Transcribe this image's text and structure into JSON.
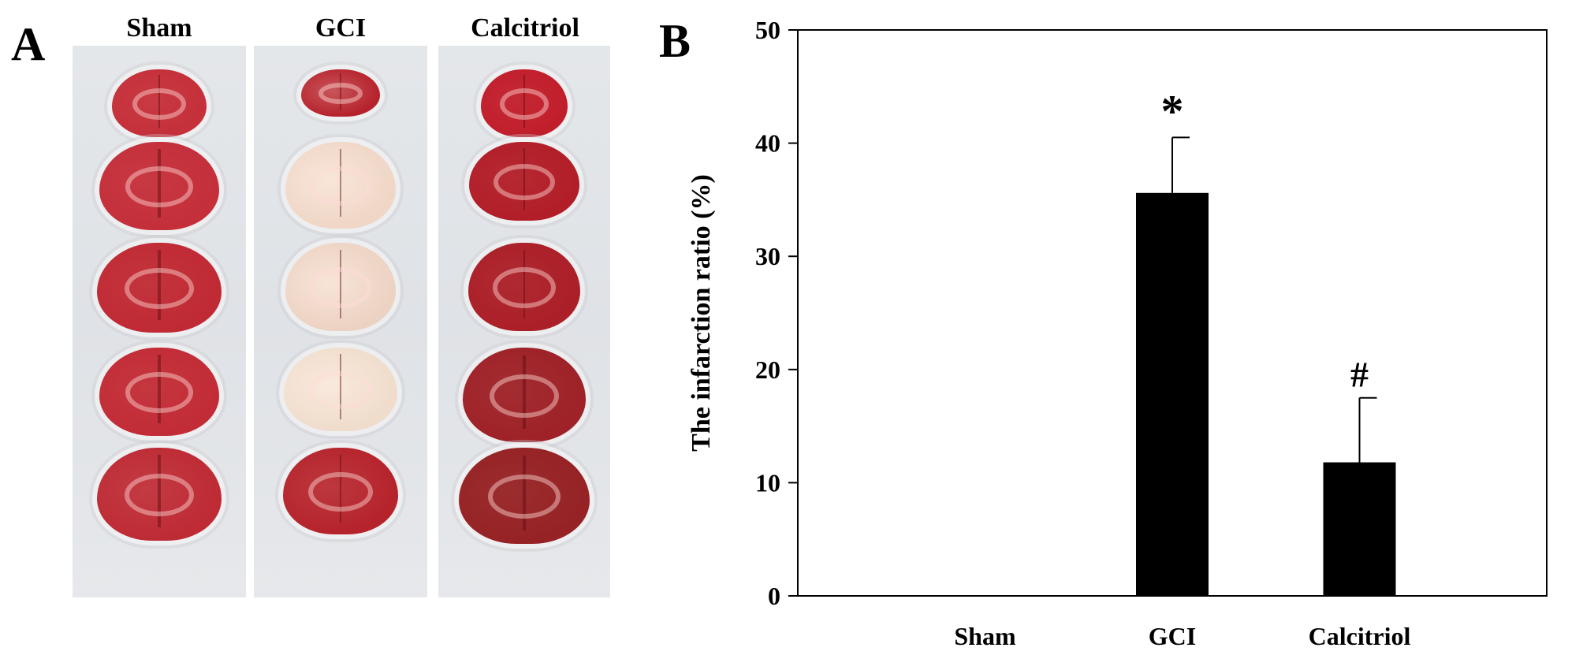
{
  "panel_a": {
    "letter": "A",
    "columns": [
      {
        "label": "Sham",
        "slices": [
          {
            "color": "#c5303a",
            "pale": 0.05
          },
          {
            "color": "#c42f3a",
            "pale": 0.05
          },
          {
            "color": "#c02a34",
            "pale": 0.05
          },
          {
            "color": "#c22c36",
            "pale": 0.05
          },
          {
            "color": "#be2b35",
            "pale": 0.08
          }
        ]
      },
      {
        "label": "GCI",
        "slices": [
          {
            "color": "#b6222c",
            "pale": 0.25
          },
          {
            "color": "#efd6c6",
            "pale": 0.6
          },
          {
            "color": "#ecd2c2",
            "pale": 0.6
          },
          {
            "color": "#efdccb",
            "pale": 0.65
          },
          {
            "color": "#b5232b",
            "pale": 0.1
          }
        ]
      },
      {
        "label": "Calcitriol",
        "slices": [
          {
            "color": "#c11e2b",
            "pale": 0.05
          },
          {
            "color": "#b21e28",
            "pale": 0.05
          },
          {
            "color": "#ab1f28",
            "pale": 0.05
          },
          {
            "color": "#9e2228",
            "pale": 0.05
          },
          {
            "color": "#962225",
            "pale": 0.05
          }
        ]
      }
    ]
  },
  "panel_b": {
    "letter": "B"
  },
  "chart_data": {
    "type": "bar",
    "categories": [
      "Sham",
      "GCI",
      "Calcitriol"
    ],
    "values": [
      0,
      35.6,
      11.8
    ],
    "error_plus": [
      0,
      4.9,
      5.7
    ],
    "annotations": [
      "",
      "*",
      "#"
    ],
    "title": "",
    "xlabel": "",
    "ylabel": "The infarction ratio (%)",
    "ylim": [
      0,
      50
    ],
    "yticks": [
      0,
      10,
      20,
      30,
      40,
      50
    ],
    "bar_color": "#000000",
    "grid": false,
    "legend": "none"
  }
}
